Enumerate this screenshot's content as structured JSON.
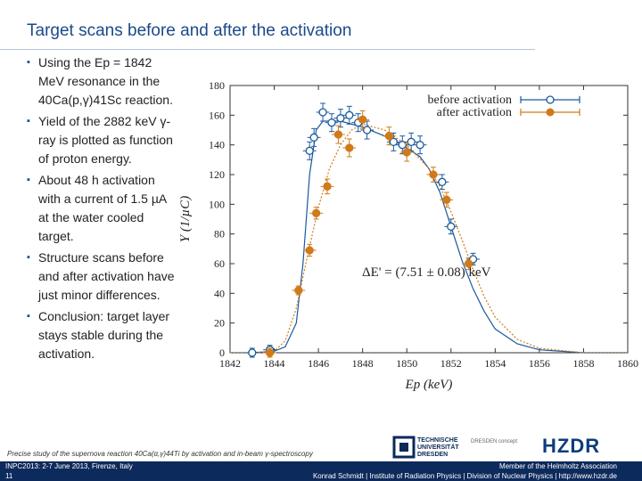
{
  "slide": {
    "title": "Target scans before and after the activation",
    "bullets": [
      "Using the Ep = 1842 MeV resonance in the 40Ca(p,γ)41Sc reaction.",
      "Yield of the 2882 keV γ-ray is plotted as function of proton energy.",
      "About 48 h activation with a current of 1.5 µA at the water cooled target.",
      "Structure scans before and after activation have just minor differences.",
      "Conclusion: target layer stays stable during the activation."
    ],
    "footer_note": "Precise study of the supernova reaction 40Ca(α,γ)44Ti by activation and in-beam γ-spectroscopy",
    "footer_left_1": "INPC2013: 2-7 June 2013, Firenze, Italy",
    "footer_left_2": "11",
    "footer_right_1": "Member of the Helmholtz Association",
    "footer_right_2": "Konrad Schmidt | Institute of Radiation Physics | Division of Nuclear Physics | http://www.hzdr.de",
    "logo_tud": "TECHNISCHE\nUNIVERSITÄT\nDRESDEN",
    "logo_concept": "DRESDEN\nconcept",
    "logo_hzdr": "HZDR"
  },
  "colors": {
    "title": "#1a4a8a",
    "before": "#1a5a9e",
    "after": "#d07a1a",
    "footer_bg": "#0d2a5c"
  },
  "chart_data": {
    "type": "scatter",
    "xlabel": "Ep (keV)",
    "ylabel": "Y (1/µC)",
    "xlim": [
      1842,
      1860
    ],
    "ylim": [
      0,
      180
    ],
    "xticks": [
      1842,
      1844,
      1846,
      1848,
      1850,
      1852,
      1854,
      1856,
      1858,
      1860
    ],
    "yticks": [
      0,
      20,
      40,
      60,
      80,
      100,
      120,
      140,
      160,
      180
    ],
    "annotation": "ΔE' = (7.51 ± 0.08) keV",
    "legend_position": "top-right",
    "series": [
      {
        "name": "before activation",
        "color": "#1a5a9e",
        "marker": "open-circle",
        "points": [
          {
            "x": 1843.0,
            "y": 0,
            "xerr": 0.3,
            "yerr": 3
          },
          {
            "x": 1843.8,
            "y": 2,
            "xerr": 0.3,
            "yerr": 3
          },
          {
            "x": 1845.6,
            "y": 136,
            "xerr": 0.3,
            "yerr": 6
          },
          {
            "x": 1845.8,
            "y": 145,
            "xerr": 0.3,
            "yerr": 6
          },
          {
            "x": 1846.2,
            "y": 162,
            "xerr": 0.3,
            "yerr": 6
          },
          {
            "x": 1846.6,
            "y": 155,
            "xerr": 0.3,
            "yerr": 6
          },
          {
            "x": 1847.0,
            "y": 158,
            "xerr": 0.3,
            "yerr": 6
          },
          {
            "x": 1847.4,
            "y": 160,
            "xerr": 0.3,
            "yerr": 6
          },
          {
            "x": 1847.8,
            "y": 155,
            "xerr": 0.3,
            "yerr": 6
          },
          {
            "x": 1848.2,
            "y": 150,
            "xerr": 0.3,
            "yerr": 6
          },
          {
            "x": 1849.4,
            "y": 142,
            "xerr": 0.3,
            "yerr": 6
          },
          {
            "x": 1849.8,
            "y": 140,
            "xerr": 0.3,
            "yerr": 6
          },
          {
            "x": 1850.2,
            "y": 142,
            "xerr": 0.3,
            "yerr": 6
          },
          {
            "x": 1850.6,
            "y": 140,
            "xerr": 0.3,
            "yerr": 6
          },
          {
            "x": 1851.6,
            "y": 115,
            "xerr": 0.3,
            "yerr": 5
          },
          {
            "x": 1852.0,
            "y": 85,
            "xerr": 0.3,
            "yerr": 5
          },
          {
            "x": 1853.0,
            "y": 63,
            "xerr": 0.3,
            "yerr": 4
          }
        ]
      },
      {
        "name": "after activation",
        "color": "#d07a1a",
        "marker": "filled-circle",
        "points": [
          {
            "x": 1843.8,
            "y": 0,
            "xerr": 0.3,
            "yerr": 3
          },
          {
            "x": 1845.1,
            "y": 42,
            "xerr": 0.3,
            "yerr": 3
          },
          {
            "x": 1845.6,
            "y": 69,
            "xerr": 0.3,
            "yerr": 4
          },
          {
            "x": 1845.9,
            "y": 94,
            "xerr": 0.3,
            "yerr": 4
          },
          {
            "x": 1846.4,
            "y": 112,
            "xerr": 0.3,
            "yerr": 5
          },
          {
            "x": 1846.9,
            "y": 147,
            "xerr": 0.3,
            "yerr": 6
          },
          {
            "x": 1847.4,
            "y": 138,
            "xerr": 0.3,
            "yerr": 6
          },
          {
            "x": 1848.0,
            "y": 157,
            "xerr": 0.3,
            "yerr": 6
          },
          {
            "x": 1849.2,
            "y": 146,
            "xerr": 0.3,
            "yerr": 6
          },
          {
            "x": 1850.0,
            "y": 135,
            "xerr": 0.3,
            "yerr": 6
          },
          {
            "x": 1851.2,
            "y": 120,
            "xerr": 0.3,
            "yerr": 5
          },
          {
            "x": 1851.8,
            "y": 103,
            "xerr": 0.3,
            "yerr": 5
          },
          {
            "x": 1852.8,
            "y": 60,
            "xerr": 0.3,
            "yerr": 4
          }
        ]
      }
    ],
    "fits": [
      {
        "name": "before fit",
        "color": "#1a5a9e",
        "style": "solid",
        "points": [
          [
            1842,
            0
          ],
          [
            1843,
            0
          ],
          [
            1844,
            1
          ],
          [
            1844.5,
            4
          ],
          [
            1845,
            20
          ],
          [
            1845.3,
            60
          ],
          [
            1845.6,
            120
          ],
          [
            1845.9,
            150
          ],
          [
            1846.2,
            156
          ],
          [
            1847,
            156
          ],
          [
            1848,
            152
          ],
          [
            1849,
            146
          ],
          [
            1850,
            138
          ],
          [
            1850.6,
            132
          ],
          [
            1851,
            124
          ],
          [
            1851.5,
            108
          ],
          [
            1852,
            85
          ],
          [
            1852.5,
            62
          ],
          [
            1853,
            43
          ],
          [
            1853.5,
            28
          ],
          [
            1854,
            16
          ],
          [
            1855,
            6
          ],
          [
            1856,
            2
          ],
          [
            1858,
            0
          ],
          [
            1860,
            0
          ]
        ]
      },
      {
        "name": "after fit",
        "color": "#d07a1a",
        "style": "dotted",
        "points": [
          [
            1842,
            0
          ],
          [
            1843,
            0
          ],
          [
            1844,
            1
          ],
          [
            1844.5,
            8
          ],
          [
            1845,
            30
          ],
          [
            1845.5,
            65
          ],
          [
            1846,
            98
          ],
          [
            1846.5,
            124
          ],
          [
            1847,
            140
          ],
          [
            1847.5,
            150
          ],
          [
            1848,
            154
          ],
          [
            1849,
            150
          ],
          [
            1850,
            140
          ],
          [
            1851,
            124
          ],
          [
            1851.5,
            112
          ],
          [
            1852,
            95
          ],
          [
            1852.5,
            76
          ],
          [
            1853,
            56
          ],
          [
            1853.5,
            38
          ],
          [
            1854,
            24
          ],
          [
            1855,
            9
          ],
          [
            1856,
            3
          ],
          [
            1858,
            0
          ],
          [
            1860,
            0
          ]
        ]
      }
    ]
  }
}
